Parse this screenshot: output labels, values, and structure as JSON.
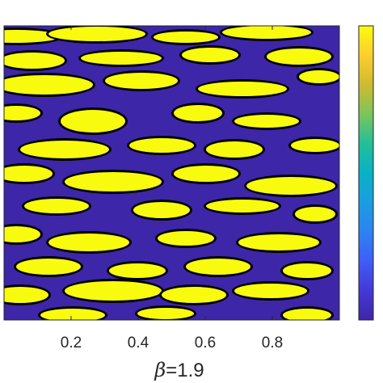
{
  "chart_data": {
    "type": "heatmap",
    "title": "",
    "xlabel": {
      "symbol": "β",
      "equals": "=",
      "value": "1.9"
    },
    "ylabel": "",
    "xlim": [
      0,
      1
    ],
    "x_ticks": [
      0.2,
      0.4,
      0.6,
      0.8
    ],
    "x_tick_labels": [
      "0.2",
      "0.4",
      "0.6",
      "0.8"
    ],
    "y_ticks": [],
    "colorbar": {
      "colormap": "parula",
      "tick_labels": []
    },
    "contour_lines": true,
    "dominant_levels": [
      "low",
      "high"
    ],
    "colors": {
      "low": "#3d26a8",
      "high": "#f9fb0e",
      "contour": "#000000",
      "axes": "#262626"
    }
  }
}
